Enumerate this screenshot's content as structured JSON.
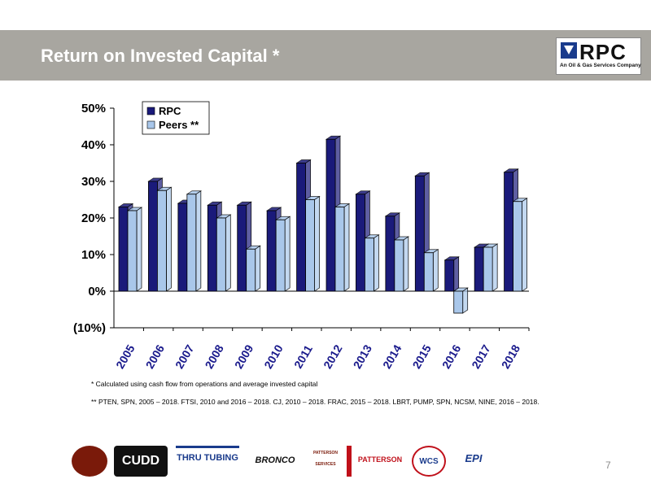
{
  "header": {
    "title": "Return on Invested Capital *",
    "band_color": "#a8a6a0"
  },
  "brand": {
    "name": "RPC",
    "tagline": "An Oil & Gas Services Company"
  },
  "chart_data": {
    "type": "bar",
    "title": "",
    "categories": [
      "2005",
      "2006",
      "2007",
      "2008",
      "2009",
      "2010",
      "2011",
      "2012",
      "2013",
      "2014",
      "2015",
      "2016",
      "2017",
      "2018"
    ],
    "series": [
      {
        "name": "RPC",
        "color": "#1a1a7a",
        "values": [
          23,
          30,
          24,
          23.5,
          23.5,
          22,
          35,
          41.5,
          26.5,
          20.5,
          31.5,
          8.5,
          12,
          32.5
        ]
      },
      {
        "name": "Peers **",
        "color": "#a9c7ea",
        "values": [
          22,
          27.5,
          26.5,
          20,
          11.5,
          19.5,
          25,
          23,
          14.5,
          14,
          10.5,
          -6,
          12,
          24.5
        ]
      }
    ],
    "ylim": [
      -10,
      50
    ],
    "yticks": [
      -10,
      0,
      10,
      20,
      30,
      40,
      50
    ],
    "ytick_labels": [
      "(10%)",
      "0%",
      "10%",
      "20%",
      "30%",
      "40%",
      "50%"
    ],
    "xlabel": "",
    "ylabel": "",
    "grid": false,
    "legend_position": "top-left"
  },
  "footnotes": [
    "* Calculated using cash flow from operations and average invested capital",
    "** PTEN, SPN, 2005 – 2018. FTSI, 2010 and 2016 – 2018. CJ, 2010 – 2018. FRAC, 2015 – 2018. LBRT, PUMP, SPN, NCSM, NINE, 2016 – 2018."
  ],
  "partners": [
    {
      "text": "",
      "icon": "flame-emblem-icon"
    },
    {
      "text": "CUDD",
      "icon": "cudd-logo"
    },
    {
      "text": "THRU TUBING",
      "icon": "thru-tubing-logo"
    },
    {
      "text": "BRONCO",
      "icon": "bronco-logo"
    },
    {
      "text": "PATTERSON SERVICES",
      "icon": "patterson-services-logo"
    },
    {
      "text": "PATTERSON",
      "icon": "patterson-rental-logo"
    },
    {
      "text": "WCS",
      "icon": "wcs-logo"
    },
    {
      "text": "EPI",
      "icon": "epi-logo"
    }
  ],
  "page_number": "7"
}
